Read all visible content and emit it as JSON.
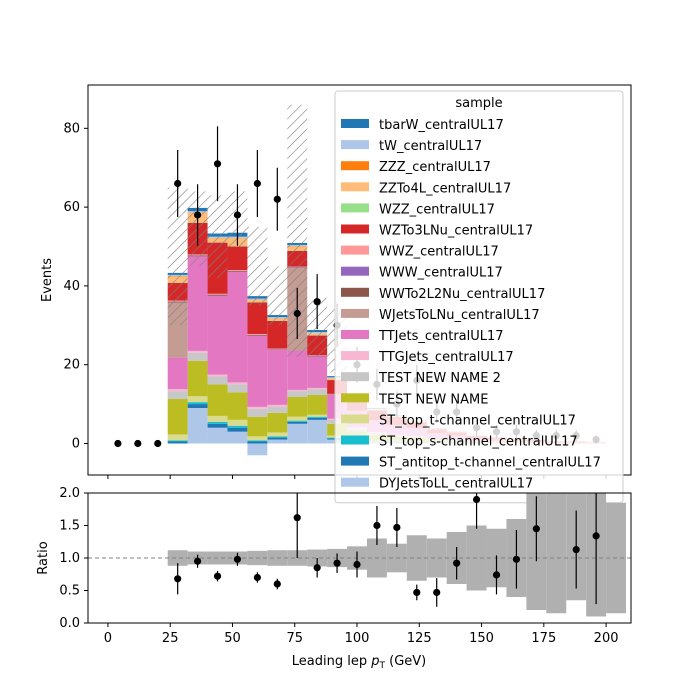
{
  "chart_data": {
    "type": "stacked-histogram-with-ratio",
    "title": "",
    "xlabel": "Leading lep",
    "xlabel_symbol": "p",
    "xlabel_subscript": "T",
    "xlabel_unit": "(GeV)",
    "ylabel_top": "Events",
    "ylabel_bottom": "Ratio",
    "xlim": [
      -8,
      210
    ],
    "ylim_top": [
      -8,
      91
    ],
    "ylim_bottom": [
      0,
      2
    ],
    "x_ticks": [
      0,
      25,
      50,
      75,
      100,
      125,
      150,
      175,
      200
    ],
    "x_tick_labels": [
      "0",
      "25",
      "50",
      "75",
      "100",
      "125",
      "150",
      "175",
      "200"
    ],
    "y_ticks_top": [
      0,
      20,
      40,
      60,
      80
    ],
    "y_tick_labels_top": [
      "0",
      "20",
      "40",
      "60",
      "80"
    ],
    "y_ticks_bottom": [
      0,
      0.5,
      1,
      1.5,
      2
    ],
    "y_tick_labels_bottom": [
      "0.0",
      "0.5",
      "1.0",
      "1.5",
      "2.0"
    ],
    "ratio_reference": 1.0,
    "legend": {
      "title": "sample",
      "placement": "upper-right",
      "entries": [
        {
          "name": "tbarW_centralUL17",
          "color": "#1f77b4"
        },
        {
          "name": "tW_centralUL17",
          "color": "#aec7e8"
        },
        {
          "name": "ZZZ_centralUL17",
          "color": "#ff7f0e"
        },
        {
          "name": "ZZTo4L_centralUL17",
          "color": "#ffbb78"
        },
        {
          "name": "WZZ_centralUL17",
          "color": "#98df8a"
        },
        {
          "name": "WZTo3LNu_centralUL17",
          "color": "#d62728"
        },
        {
          "name": "WWZ_centralUL17",
          "color": "#ff9896"
        },
        {
          "name": "WWW_centralUL17",
          "color": "#9467bd"
        },
        {
          "name": "WWTo2L2Nu_centralUL17",
          "color": "#8c564b"
        },
        {
          "name": "WJetsToLNu_centralUL17",
          "color": "#c49c94"
        },
        {
          "name": "TTJets_centralUL17",
          "color": "#e377c2"
        },
        {
          "name": "TTGJets_centralUL17",
          "color": "#f7b6d2"
        },
        {
          "name": "TEST NEW NAME 2",
          "color": "#c7c7c7"
        },
        {
          "name": "TEST NEW NAME",
          "color": "#bcbd22"
        },
        {
          "name": "ST_top_t-channel_centralUL17",
          "color": "#dbdb8d"
        },
        {
          "name": "ST_top_s-channel_centralUL17",
          "color": "#17becf"
        },
        {
          "name": "ST_antitop_t-channel_centralUL17",
          "color": "#1f77b4"
        },
        {
          "name": "DYJetsToLL_centralUL17",
          "color": "#aec7e8"
        }
      ]
    },
    "bin_edges": [
      24,
      32,
      40,
      48,
      56,
      64,
      72,
      80,
      88,
      96,
      104,
      112,
      120,
      128,
      136,
      144,
      152,
      160,
      168,
      176,
      184,
      192,
      200
    ],
    "stack": [
      {
        "name": "DYJetsToLL_centralUL17",
        "color": "#aec7e8",
        "values": [
          0,
          9,
          4,
          3,
          -3,
          1,
          5,
          6,
          1,
          0.5,
          0.3,
          0.3,
          0.2,
          0.1,
          0.1,
          0.1,
          0,
          0,
          0,
          0,
          0,
          0
        ]
      },
      {
        "name": "ST_antitop_t-channel_centralUL17",
        "color": "#1f77b4",
        "values": [
          0.5,
          1,
          1,
          1,
          0.5,
          0.5,
          0.5,
          0.5,
          0.3,
          0.2,
          0.1,
          0.1,
          0.1,
          0.1,
          0,
          0,
          0,
          0,
          0,
          0,
          0,
          0
        ]
      },
      {
        "name": "ST_top_s-channel_centralUL17",
        "color": "#17becf",
        "values": [
          0.3,
          0.5,
          0.5,
          0.5,
          0.3,
          0.3,
          0.3,
          0.3,
          0.2,
          0.1,
          0.1,
          0.1,
          0.1,
          0,
          0,
          0,
          0,
          0,
          0,
          0,
          0,
          0
        ]
      },
      {
        "name": "ST_top_t-channel_centralUL17",
        "color": "#dbdb8d",
        "values": [
          1.5,
          1.5,
          1.5,
          1.5,
          1,
          1,
          1,
          0.5,
          0.5,
          0.3,
          0.2,
          0.2,
          0.1,
          0.1,
          0.1,
          0,
          0,
          0,
          0,
          0,
          0,
          0
        ]
      },
      {
        "name": "TEST NEW NAME",
        "color": "#bcbd22",
        "values": [
          9,
          9,
          8,
          7,
          5,
          5,
          5,
          5,
          3,
          2,
          1.5,
          1,
          1,
          0.5,
          0.5,
          0.3,
          0.3,
          0.2,
          0.2,
          0.1,
          0.1,
          0.1
        ]
      },
      {
        "name": "TEST NEW NAME 2",
        "color": "#c7c7c7",
        "values": [
          2,
          2,
          2,
          2,
          2,
          1.5,
          1.5,
          1.5,
          1,
          0.8,
          0.5,
          0.4,
          0.3,
          0.2,
          0.2,
          0.1,
          0.1,
          0.1,
          0.1,
          0,
          0,
          0
        ]
      },
      {
        "name": "TTGJets_centralUL17",
        "color": "#f7b6d2",
        "values": [
          0.5,
          0.5,
          0.5,
          0.5,
          0.5,
          0.5,
          0.3,
          0.3,
          0.3,
          0.2,
          0.2,
          0.1,
          0.1,
          0.1,
          0.1,
          0,
          0,
          0,
          0,
          0,
          0,
          0
        ]
      },
      {
        "name": "TTJets_centralUL17",
        "color": "#e377c2",
        "values": [
          8,
          24,
          20,
          28,
          18,
          14,
          10,
          8,
          6,
          4,
          3,
          2.5,
          2,
          1.5,
          1,
          0.8,
          0.6,
          0.4,
          0.3,
          0.2,
          0.2,
          0.1
        ]
      },
      {
        "name": "WJetsToLNu_centralUL17",
        "color": "#c49c94",
        "values": [
          14,
          0,
          0,
          0,
          0,
          0,
          21,
          0,
          0,
          0,
          0,
          0,
          0,
          0,
          0,
          0,
          0,
          0,
          0,
          0,
          0,
          0
        ]
      },
      {
        "name": "WWTo2L2Nu_centralUL17",
        "color": "#8c564b",
        "values": [
          0.2,
          0.2,
          0.2,
          0.2,
          0.2,
          0.1,
          0.1,
          0.1,
          0.1,
          0.1,
          0,
          0,
          0,
          0,
          0,
          0,
          0,
          0,
          0,
          0,
          0,
          0
        ]
      },
      {
        "name": "WWW_centralUL17",
        "color": "#9467bd",
        "values": [
          0.1,
          0.1,
          0.1,
          0.1,
          0.1,
          0.1,
          0.1,
          0.1,
          0.1,
          0,
          0,
          0,
          0,
          0,
          0,
          0,
          0,
          0,
          0,
          0,
          0,
          0
        ]
      },
      {
        "name": "WWZ_centralUL17",
        "color": "#ff9896",
        "values": [
          0.2,
          0.2,
          0.2,
          0.2,
          0.2,
          0.1,
          0.1,
          0.1,
          0.1,
          0.1,
          0,
          0,
          0,
          0,
          0,
          0,
          0,
          0,
          0,
          0,
          0,
          0
        ]
      },
      {
        "name": "WZTo3LNu_centralUL17",
        "color": "#d62728",
        "values": [
          4.5,
          8,
          13,
          6,
          8,
          7,
          4,
          5,
          3.5,
          3,
          2.5,
          2,
          1.5,
          1,
          0.8,
          0.6,
          0.5,
          0.4,
          0.3,
          0.2,
          0.2,
          0.1
        ]
      },
      {
        "name": "WZZ_centralUL17",
        "color": "#98df8a",
        "values": [
          0.1,
          0.1,
          0.1,
          0.1,
          0.1,
          0.1,
          0.1,
          0.1,
          0,
          0,
          0,
          0,
          0,
          0,
          0,
          0,
          0,
          0,
          0,
          0,
          0,
          0
        ]
      },
      {
        "name": "ZZTo4L_centralUL17",
        "color": "#ffbb78",
        "values": [
          1.5,
          2.5,
          1,
          2,
          0.5,
          0.5,
          1,
          0.5,
          0.5,
          0.3,
          0.3,
          0.2,
          0.2,
          0.1,
          0.1,
          0.1,
          0,
          0,
          0,
          0,
          0,
          0
        ]
      },
      {
        "name": "ZZZ_centralUL17",
        "color": "#ff7f0e",
        "values": [
          0.1,
          0.1,
          0.1,
          0.1,
          0.1,
          0.1,
          0.1,
          0,
          0,
          0,
          0,
          0,
          0,
          0,
          0,
          0,
          0,
          0,
          0,
          0,
          0,
          0
        ]
      },
      {
        "name": "tW_centralUL17",
        "color": "#aec7e8",
        "values": [
          0.3,
          0.3,
          0.3,
          0.3,
          0.3,
          0.3,
          0.3,
          0.3,
          0.2,
          0.2,
          0.1,
          0.1,
          0.1,
          0.1,
          0,
          0,
          0,
          0,
          0,
          0,
          0,
          0
        ]
      },
      {
        "name": "tbarW_centralUL17",
        "color": "#1f77b4",
        "values": [
          0.5,
          0.8,
          0.8,
          1,
          0.6,
          0.5,
          0.5,
          0.5,
          0.3,
          0.2,
          0.2,
          0.1,
          0.1,
          0.1,
          0.1,
          0,
          0,
          0,
          0,
          0,
          0,
          0
        ]
      }
    ],
    "uncertainty_band_top": [
      {
        "x0": 24,
        "x1": 32,
        "lo": 30,
        "hi": 65
      },
      {
        "x0": 32,
        "x1": 40,
        "lo": 45,
        "hi": 64
      },
      {
        "x0": 40,
        "x1": 48,
        "lo": 42,
        "hi": 63
      },
      {
        "x0": 48,
        "x1": 56,
        "lo": 50,
        "hi": 64
      },
      {
        "x0": 56,
        "x1": 64,
        "lo": 35,
        "hi": 55
      },
      {
        "x0": 64,
        "x1": 72,
        "lo": 30,
        "hi": 45
      },
      {
        "x0": 72,
        "x1": 80,
        "lo": 22,
        "hi": 86
      },
      {
        "x0": 80,
        "x1": 88,
        "lo": 22,
        "hi": 37
      },
      {
        "x0": 88,
        "x1": 96,
        "lo": 18,
        "hi": 34
      }
    ],
    "data_points": [
      {
        "x": 4,
        "y": 0,
        "err": 0
      },
      {
        "x": 12,
        "y": 0,
        "err": 0
      },
      {
        "x": 20,
        "y": 0,
        "err": 0
      },
      {
        "x": 28,
        "y": 66,
        "err": 8.5
      },
      {
        "x": 36,
        "y": 58,
        "err": 7.8
      },
      {
        "x": 44,
        "y": 71,
        "err": 9.5
      },
      {
        "x": 52,
        "y": 58,
        "err": 7.8
      },
      {
        "x": 60,
        "y": 66,
        "err": 8.5
      },
      {
        "x": 68,
        "y": 62,
        "err": 8.0
      },
      {
        "x": 76,
        "y": 33,
        "err": 6.5
      },
      {
        "x": 84,
        "y": 36,
        "err": 7.0
      },
      {
        "x": 92,
        "y": 30,
        "err": 5.5
      },
      {
        "x": 100,
        "y": 20,
        "err": 4.5
      },
      {
        "x": 108,
        "y": 15,
        "err": 4.0
      },
      {
        "x": 116,
        "y": 10,
        "err": 3.2
      },
      {
        "x": 124,
        "y": 16,
        "err": 4.0
      },
      {
        "x": 132,
        "y": 8,
        "err": 2.8
      },
      {
        "x": 140,
        "y": 8,
        "err": 2.8
      },
      {
        "x": 148,
        "y": 4,
        "err": 2.0
      },
      {
        "x": 156,
        "y": 3,
        "err": 1.7
      },
      {
        "x": 164,
        "y": 3,
        "err": 1.7
      },
      {
        "x": 172,
        "y": 2,
        "err": 1.4
      },
      {
        "x": 180,
        "y": 2,
        "err": 1.4
      },
      {
        "x": 188,
        "y": 2,
        "err": 1.4
      },
      {
        "x": 196,
        "y": 1,
        "err": 1.0
      }
    ],
    "ratio_band": [
      {
        "x0": 24,
        "x1": 32,
        "lo": 0.88,
        "hi": 1.12
      },
      {
        "x0": 32,
        "x1": 40,
        "lo": 0.9,
        "hi": 1.1
      },
      {
        "x0": 40,
        "x1": 48,
        "lo": 0.9,
        "hi": 1.1
      },
      {
        "x0": 48,
        "x1": 56,
        "lo": 0.9,
        "hi": 1.1
      },
      {
        "x0": 56,
        "x1": 64,
        "lo": 0.89,
        "hi": 1.11
      },
      {
        "x0": 64,
        "x1": 72,
        "lo": 0.88,
        "hi": 1.12
      },
      {
        "x0": 72,
        "x1": 80,
        "lo": 0.88,
        "hi": 1.12
      },
      {
        "x0": 80,
        "x1": 88,
        "lo": 0.87,
        "hi": 1.13
      },
      {
        "x0": 88,
        "x1": 96,
        "lo": 0.86,
        "hi": 1.14
      },
      {
        "x0": 96,
        "x1": 104,
        "lo": 0.82,
        "hi": 1.18
      },
      {
        "x0": 104,
        "x1": 112,
        "lo": 0.7,
        "hi": 1.3
      },
      {
        "x0": 112,
        "x1": 120,
        "lo": 0.78,
        "hi": 1.22
      },
      {
        "x0": 120,
        "x1": 128,
        "lo": 0.65,
        "hi": 1.35
      },
      {
        "x0": 128,
        "x1": 136,
        "lo": 0.7,
        "hi": 1.3
      },
      {
        "x0": 136,
        "x1": 144,
        "lo": 0.6,
        "hi": 1.4
      },
      {
        "x0": 144,
        "x1": 152,
        "lo": 0.5,
        "hi": 1.5
      },
      {
        "x0": 152,
        "x1": 160,
        "lo": 0.55,
        "hi": 1.45
      },
      {
        "x0": 160,
        "x1": 168,
        "lo": 0.4,
        "hi": 1.6
      },
      {
        "x0": 168,
        "x1": 176,
        "lo": 0.2,
        "hi": 2.0
      },
      {
        "x0": 176,
        "x1": 184,
        "lo": 0.15,
        "hi": 2.0
      },
      {
        "x0": 184,
        "x1": 192,
        "lo": 0.35,
        "hi": 2.0
      },
      {
        "x0": 192,
        "x1": 200,
        "lo": 0.1,
        "hi": 2.0
      },
      {
        "x0": 200,
        "x1": 208,
        "lo": 0.15,
        "hi": 1.85
      }
    ],
    "ratio_points": [
      {
        "x": 28,
        "y": 0.68,
        "err": 0.24
      },
      {
        "x": 36,
        "y": 0.95,
        "err": 0.1
      },
      {
        "x": 44,
        "y": 0.72,
        "err": 0.08
      },
      {
        "x": 52,
        "y": 0.98,
        "err": 0.1
      },
      {
        "x": 60,
        "y": 0.7,
        "err": 0.08
      },
      {
        "x": 68,
        "y": 0.6,
        "err": 0.08
      },
      {
        "x": 76,
        "y": 1.62,
        "err": 0.62
      },
      {
        "x": 84,
        "y": 0.85,
        "err": 0.15
      },
      {
        "x": 92,
        "y": 0.92,
        "err": 0.15
      },
      {
        "x": 100,
        "y": 0.9,
        "err": 0.2
      },
      {
        "x": 108,
        "y": 1.5,
        "err": 0.3
      },
      {
        "x": 116,
        "y": 1.47,
        "err": 0.3
      },
      {
        "x": 124,
        "y": 0.47,
        "err": 0.12
      },
      {
        "x": 132,
        "y": 0.47,
        "err": 0.22
      },
      {
        "x": 140,
        "y": 0.92,
        "err": 0.25
      },
      {
        "x": 148,
        "y": 1.9,
        "err": 0.45
      },
      {
        "x": 156,
        "y": 0.74,
        "err": 0.3
      },
      {
        "x": 164,
        "y": 0.98,
        "err": 0.45
      },
      {
        "x": 172,
        "y": 1.45,
        "err": 0.5
      },
      {
        "x": 188,
        "y": 1.13,
        "err": 0.6
      },
      {
        "x": 196,
        "y": 1.34,
        "err": 1.05
      }
    ]
  }
}
